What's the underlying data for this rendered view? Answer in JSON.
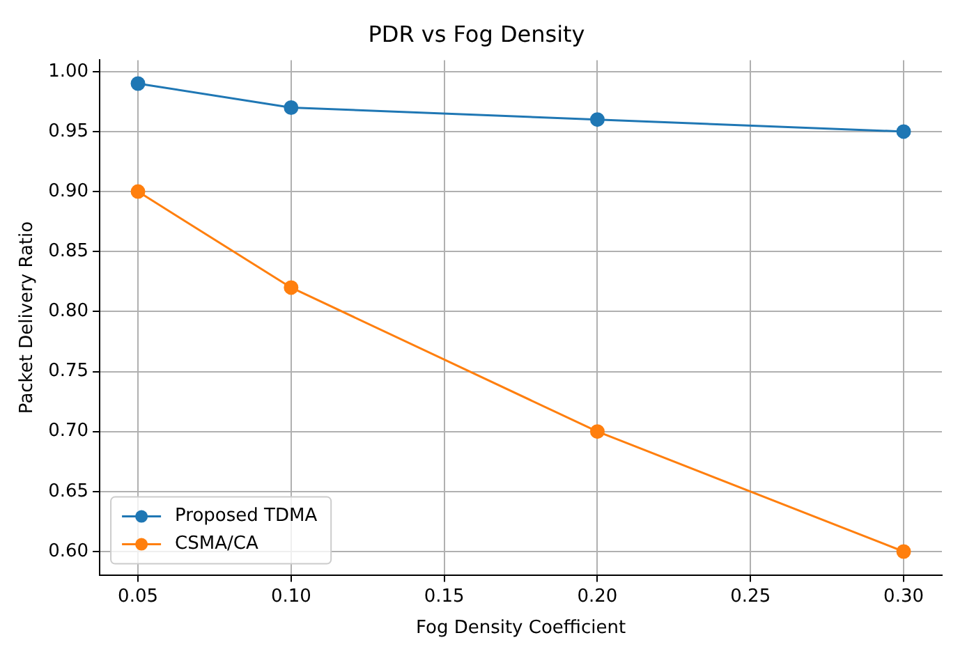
{
  "chart_data": {
    "type": "line",
    "title": "PDR vs Fog Density",
    "xlabel": "Fog Density Coefficient",
    "ylabel": "Packet Delivery Ratio",
    "x": [
      0.05,
      0.1,
      0.2,
      0.3
    ],
    "series": [
      {
        "name": "Proposed TDMA",
        "color": "#1f77b4",
        "values": [
          0.99,
          0.97,
          0.96,
          0.95
        ]
      },
      {
        "name": "CSMA/CA",
        "color": "#ff7f0e",
        "values": [
          0.9,
          0.82,
          0.7,
          0.6
        ]
      }
    ],
    "xlim": [
      0.0375,
      0.3125
    ],
    "ylim": [
      0.5805,
      1.0095
    ],
    "xticks": [
      {
        "value": 0.05,
        "label": "0.05"
      },
      {
        "value": 0.1,
        "label": "0.10"
      },
      {
        "value": 0.15,
        "label": "0.15"
      },
      {
        "value": 0.2,
        "label": "0.20"
      },
      {
        "value": 0.25,
        "label": "0.25"
      },
      {
        "value": 0.3,
        "label": "0.30"
      }
    ],
    "yticks": [
      {
        "value": 0.6,
        "label": "0.60"
      },
      {
        "value": 0.65,
        "label": "0.65"
      },
      {
        "value": 0.7,
        "label": "0.70"
      },
      {
        "value": 0.75,
        "label": "0.75"
      },
      {
        "value": 0.8,
        "label": "0.80"
      },
      {
        "value": 0.85,
        "label": "0.85"
      },
      {
        "value": 0.9,
        "label": "0.90"
      },
      {
        "value": 0.95,
        "label": "0.95"
      },
      {
        "value": 1.0,
        "label": "1.00"
      }
    ],
    "grid": true,
    "legend": "bottom left",
    "marker": "circle",
    "line_style": "solid"
  }
}
